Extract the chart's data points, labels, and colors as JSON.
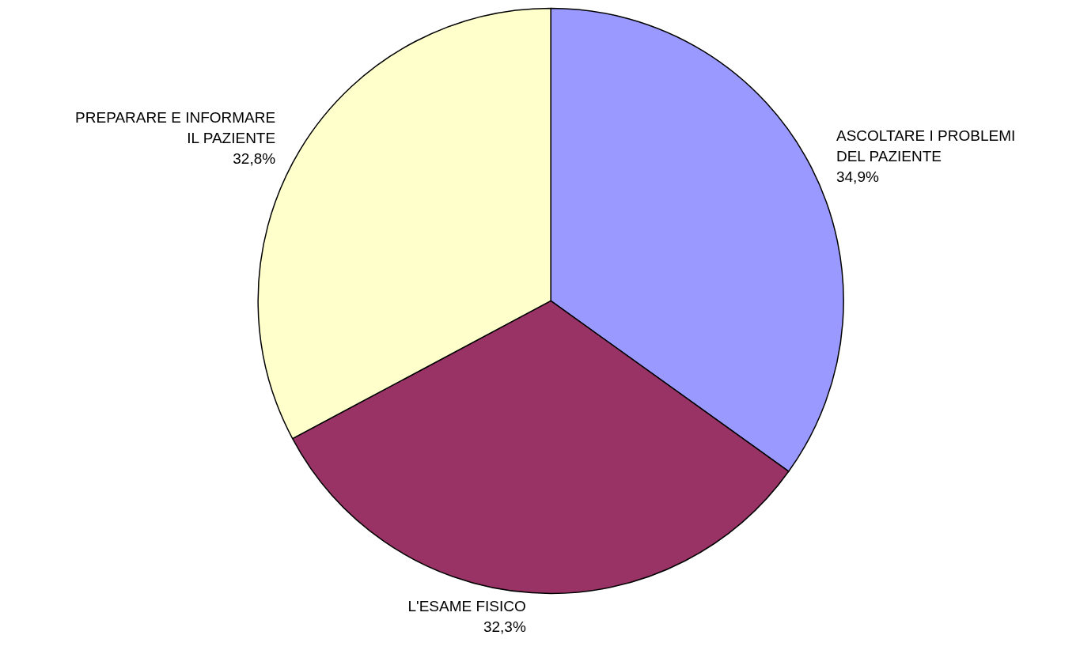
{
  "chart_data": {
    "type": "pie",
    "categories": [
      "ASCOLTARE I PROBLEMI\nDEL PAZIENTE",
      "L'ESAME FISICO",
      "PREPARARE E INFORMARE\nIL PAZIENTE"
    ],
    "values": [
      34.9,
      32.3,
      32.8
    ],
    "colors": [
      "#9999ff",
      "#993366",
      "#ffffcc"
    ],
    "value_labels": [
      "34,9%",
      "32,3%",
      "32,8%"
    ],
    "legend": false
  }
}
